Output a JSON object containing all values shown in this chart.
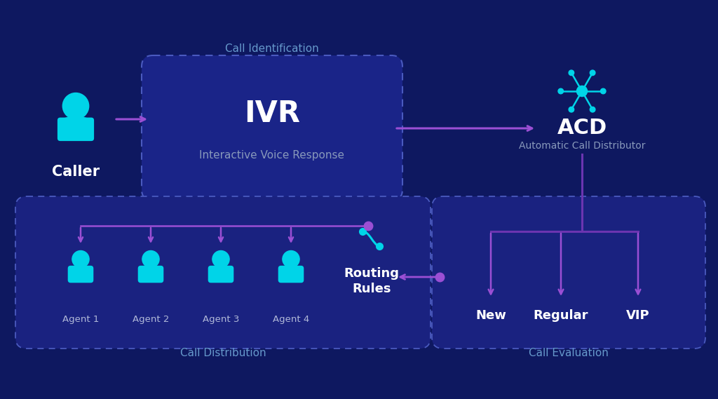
{
  "bg_color": "#0e1860",
  "cyan": "#00d4e8",
  "cyan_light": "#40e0f0",
  "purple": "#9b4fd4",
  "purple_dark": "#7b3fc0",
  "purple_line": "#6b35b0",
  "white": "#ffffff",
  "label_blue": "#6699cc",
  "box_fill_ivr": "#1a2488",
  "box_fill_bottom": "#1a2280",
  "dashed_border": "#4a5abf",
  "text_sub": "#8899bb",
  "ivr_label": "IVR",
  "ivr_sublabel": "Interactive Voice Response",
  "acd_label": "ACD",
  "acd_sublabel": "Automatic Call Distributor",
  "caller_label": "Caller",
  "call_id_label": "Call Identification",
  "call_dist_label": "Call Distribution",
  "call_eval_label": "Call Evaluation",
  "agents": [
    "Agent 1",
    "Agent 2",
    "Agent 3",
    "Agent 4"
  ],
  "categories": [
    "New",
    "Regular",
    "VIP"
  ]
}
